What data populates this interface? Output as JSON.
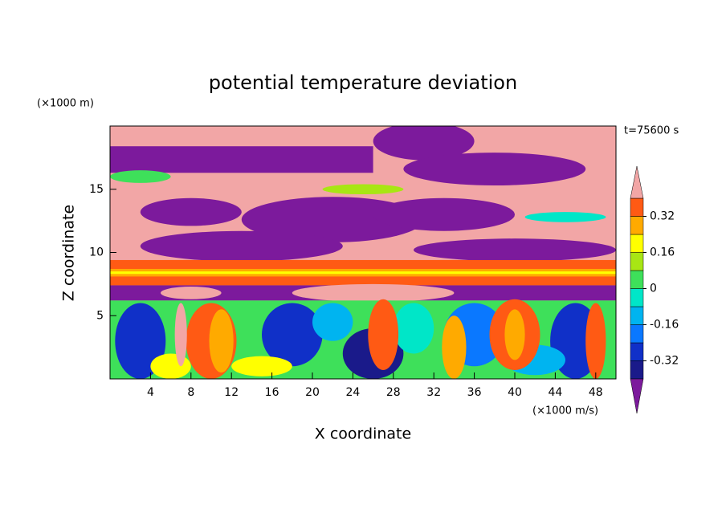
{
  "chart_data": {
    "type": "contour",
    "title": "potential temperature deviation",
    "x_label": "X coordinate",
    "y_label": "Z coordinate",
    "x_unit": "(×1000 m/s)",
    "y_unit": "(×1000 m)",
    "time_label": "t=75600 s",
    "xlim": [
      0,
      50
    ],
    "ylim": [
      0,
      20
    ],
    "xticks": [
      4,
      8,
      12,
      16,
      20,
      24,
      28,
      32,
      36,
      40,
      44,
      48
    ],
    "yticks": [
      5,
      10,
      15
    ],
    "colorbar": {
      "levels": [
        -0.4,
        -0.32,
        -0.24,
        -0.16,
        -0.08,
        0,
        0.08,
        0.16,
        0.24,
        0.32,
        0.4
      ],
      "colors": [
        "#7c1a9c",
        "#1a1a8a",
        "#1030c8",
        "#0a78ff",
        "#00b4f0",
        "#00e6c8",
        "#3ee05a",
        "#a8e614",
        "#ffff00",
        "#ffaa00",
        "#ff5a14",
        "#f2a6a6"
      ],
      "ticks": [
        0.32,
        0.16,
        0,
        -0.16,
        -0.32
      ]
    }
  }
}
